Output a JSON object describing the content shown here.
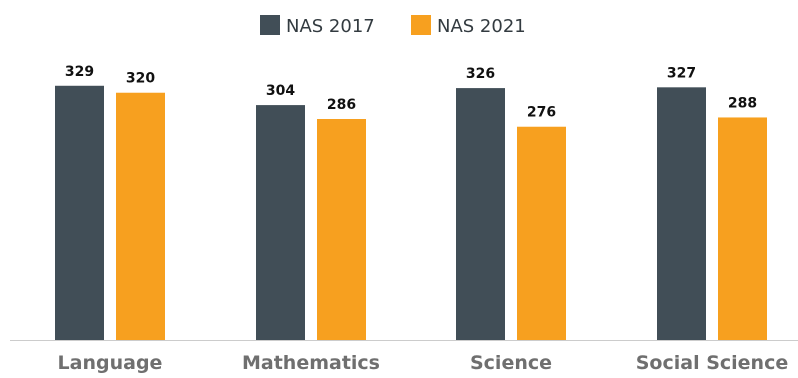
{
  "chart_data": {
    "type": "bar",
    "title": "",
    "xlabel": "",
    "ylabel": "",
    "categories": [
      "Language",
      "Mathematics",
      "Science",
      "Social Science"
    ],
    "series": [
      {
        "name": "NAS 2017",
        "color": "#414e57",
        "values": [
          329,
          304,
          326,
          327
        ]
      },
      {
        "name": "NAS 2021",
        "color": "#f7a01f",
        "values": [
          320,
          286,
          276,
          288
        ]
      }
    ],
    "ylim": [
      0,
      440
    ],
    "legend": "top-center",
    "grid": false,
    "baseline_color": "#cccccc"
  }
}
